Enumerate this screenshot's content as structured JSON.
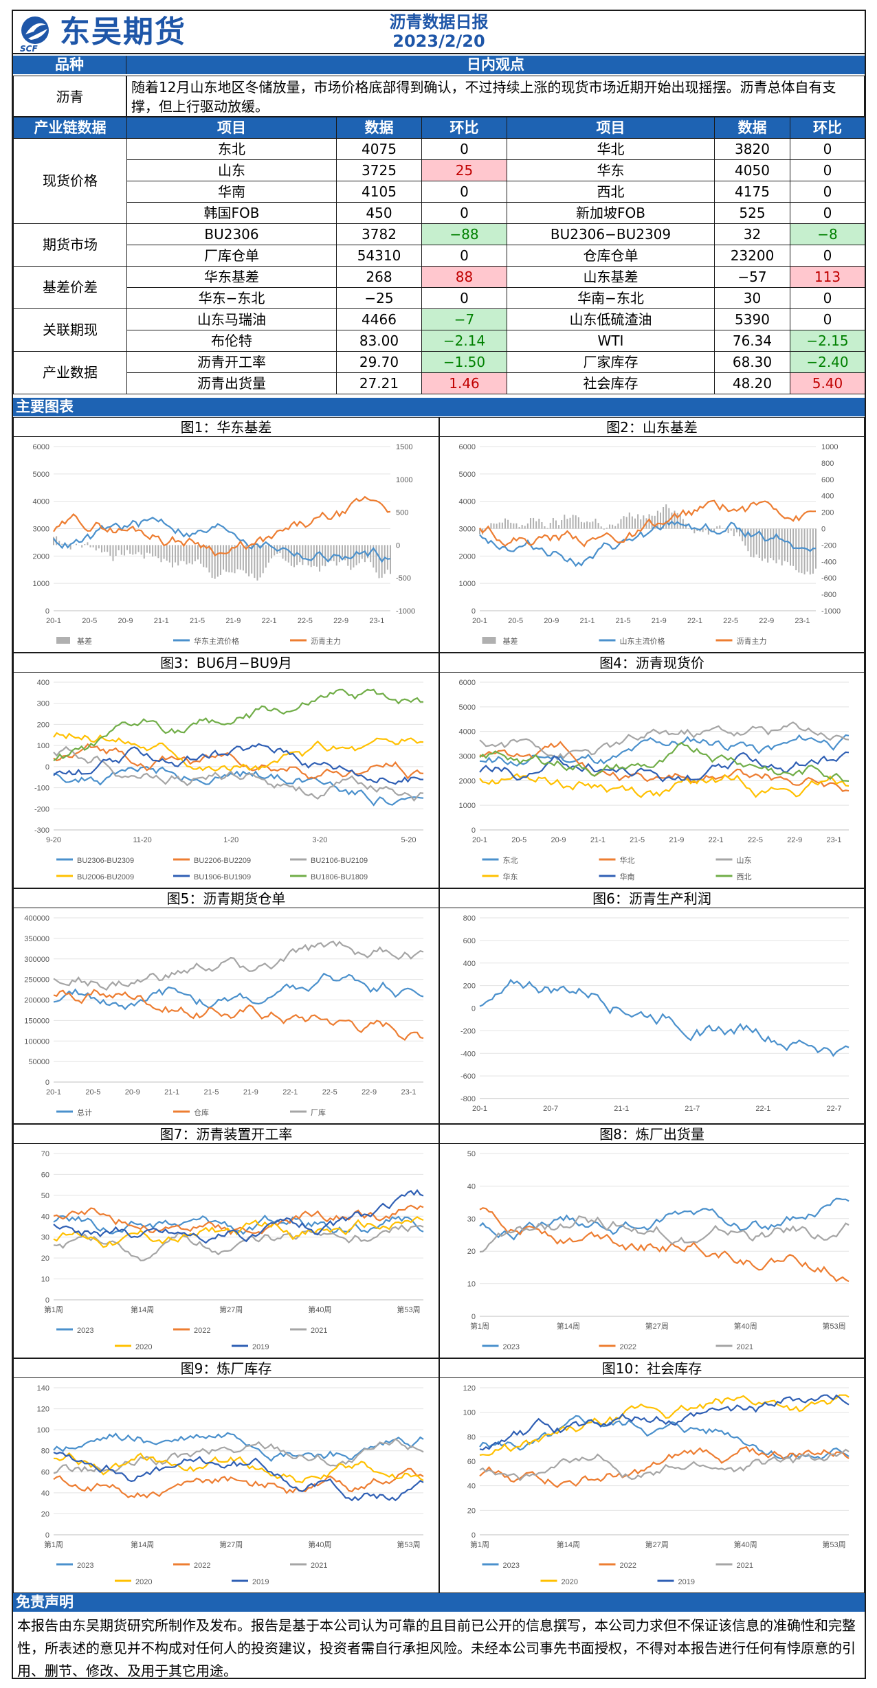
{
  "header": {
    "company": "东吴期货",
    "company_abbr": "SCF",
    "title": "沥青数据日报",
    "date": "2023/2/20"
  },
  "view": {
    "col1": "品种",
    "col2": "日内观点",
    "product": "沥青",
    "text": "随着12月山东地区冬储放量，市场价格底部得到确认，不过持续上涨的现货市场近期开始出现摇摆。沥青总体自有支撑，但上行驱动放缓。"
  },
  "chain": {
    "headers": [
      "产业链数据",
      "项目",
      "数据",
      "环比",
      "项目",
      "数据",
      "环比"
    ],
    "groups": [
      {
        "name": "现货价格",
        "rows": [
          {
            "i1": "东北",
            "v1": "4075",
            "c1": "0",
            "s1": "",
            "i2": "华北",
            "v2": "3820",
            "c2": "0",
            "s2": ""
          },
          {
            "i1": "山东",
            "v1": "3725",
            "c1": "25",
            "s1": "red",
            "i2": "华东",
            "v2": "4050",
            "c2": "0",
            "s2": ""
          },
          {
            "i1": "华南",
            "v1": "4105",
            "c1": "0",
            "s1": "",
            "i2": "西北",
            "v2": "4175",
            "c2": "0",
            "s2": ""
          },
          {
            "i1": "韩国FOB",
            "v1": "450",
            "c1": "0",
            "s1": "",
            "i2": "新加坡FOB",
            "v2": "525",
            "c2": "0",
            "s2": ""
          }
        ]
      },
      {
        "name": "期货市场",
        "rows": [
          {
            "i1": "BU2306",
            "v1": "3782",
            "c1": "−88",
            "s1": "green",
            "i2": "BU2306−BU2309",
            "v2": "32",
            "c2": "−8",
            "s2": "green"
          },
          {
            "i1": "厂库仓单",
            "v1": "54310",
            "c1": "0",
            "s1": "",
            "i2": "仓库仓单",
            "v2": "23200",
            "c2": "0",
            "s2": ""
          }
        ]
      },
      {
        "name": "基差价差",
        "rows": [
          {
            "i1": "华东基差",
            "v1": "268",
            "c1": "88",
            "s1": "red",
            "i2": "山东基差",
            "v2": "−57",
            "c2": "113",
            "s2": "red"
          },
          {
            "i1": "华东−东北",
            "v1": "−25",
            "c1": "0",
            "s1": "",
            "i2": "华南−东北",
            "v2": "30",
            "c2": "0",
            "s2": ""
          }
        ]
      },
      {
        "name": "关联期现",
        "rows": [
          {
            "i1": "山东马瑞油",
            "v1": "4466",
            "c1": "−7",
            "s1": "green",
            "i2": "山东低硫渣油",
            "v2": "5390",
            "c2": "0",
            "s2": ""
          },
          {
            "i1": "布伦特",
            "v1": "83.00",
            "c1": "−2.14",
            "s1": "green",
            "i2": "WTI",
            "v2": "76.34",
            "c2": "−2.15",
            "s2": "green"
          }
        ]
      },
      {
        "name": "产业数据",
        "rows": [
          {
            "i1": "沥青开工率",
            "v1": "29.70",
            "c1": "−1.50",
            "s1": "green",
            "i2": "厂家库存",
            "v2": "68.30",
            "c2": "−2.40",
            "s2": "green"
          },
          {
            "i1": "沥青出货量",
            "v1": "27.21",
            "c1": "1.46",
            "s1": "red",
            "i2": "社会库存",
            "v2": "48.20",
            "c2": "5.40",
            "s2": "red"
          }
        ]
      }
    ]
  },
  "section_charts": "主要图表",
  "charts": [
    {
      "title": "图1：华东基差",
      "x_ticks": [
        "20-1",
        "20-5",
        "20-9",
        "21-1",
        "21-5",
        "21-9",
        "22-1",
        "22-5",
        "22-9",
        "23-1"
      ],
      "y_left": [
        "0",
        "1000",
        "2000",
        "3000",
        "4000",
        "5000",
        "6000"
      ],
      "y_right": [
        "-1000",
        "-500",
        "0",
        "500",
        "1000",
        "1500"
      ],
      "legend": [
        "基差",
        "华东主流价格",
        "沥青主力"
      ],
      "colors": [
        "#b0b0b0",
        "#4a90cc",
        "#ed7d31"
      ]
    },
    {
      "title": "图2：山东基差",
      "x_ticks": [
        "20-1",
        "20-5",
        "20-9",
        "21-1",
        "21-5",
        "21-9",
        "22-1",
        "22-5",
        "22-9",
        "23-1"
      ],
      "y_left": [
        "0",
        "1000",
        "2000",
        "3000",
        "4000",
        "5000",
        "6000"
      ],
      "y_right": [
        "-1000",
        "-800",
        "-600",
        "-400",
        "-200",
        "0",
        "200",
        "400",
        "600",
        "800",
        "1000"
      ],
      "legend": [
        "基差",
        "山东主流价格",
        "沥青主力"
      ],
      "colors": [
        "#b0b0b0",
        "#4a90cc",
        "#ed7d31"
      ]
    },
    {
      "title": "图3：BU6月−BU9月",
      "x_ticks": [
        "9-20",
        "11-20",
        "1-20",
        "3-20",
        "5-20"
      ],
      "y_left": [
        "-300",
        "-200",
        "-100",
        "0",
        "100",
        "200",
        "300",
        "400"
      ],
      "legend": [
        "BU2306-BU2309",
        "BU2206-BU2209",
        "BU2106-BU2109",
        "BU2006-BU2009",
        "BU1906-BU1909",
        "BU1806-BU1809"
      ],
      "colors": [
        "#4a90cc",
        "#ed7d31",
        "#a5a5a5",
        "#ffc000",
        "#2f5fb4",
        "#70ad47"
      ]
    },
    {
      "title": "图4：沥青现货价",
      "x_ticks": [
        "20-1",
        "20-5",
        "20-9",
        "21-1",
        "21-5",
        "21-9",
        "22-1",
        "22-5",
        "22-9",
        "23-1"
      ],
      "y_left": [
        "0",
        "1000",
        "2000",
        "3000",
        "4000",
        "5000",
        "6000"
      ],
      "legend": [
        "东北",
        "华北",
        "山东",
        "华东",
        "华南",
        "西北"
      ],
      "colors": [
        "#4a90cc",
        "#ed7d31",
        "#a5a5a5",
        "#ffc000",
        "#2f5fb4",
        "#70ad47"
      ]
    },
    {
      "title": "图5：沥青期货仓单",
      "x_ticks": [
        "20-1",
        "20-5",
        "20-9",
        "21-1",
        "21-5",
        "21-9",
        "22-1",
        "22-5",
        "22-9",
        "23-1"
      ],
      "y_left": [
        "0",
        "50000",
        "100000",
        "150000",
        "200000",
        "250000",
        "300000",
        "350000",
        "400000"
      ],
      "legend": [
        "总计",
        "仓库",
        "厂库"
      ],
      "colors": [
        "#4a90cc",
        "#ed7d31",
        "#a5a5a5"
      ]
    },
    {
      "title": "图6：沥青生产利润",
      "x_ticks": [
        "20-1",
        "20-7",
        "21-1",
        "21-7",
        "22-1",
        "22-7"
      ],
      "y_left": [
        "-800",
        "-600",
        "-400",
        "-200",
        "0",
        "200",
        "400",
        "600",
        "800"
      ],
      "legend": [],
      "colors": [
        "#4a90cc"
      ]
    },
    {
      "title": "图7：沥青装置开工率",
      "x_ticks": [
        "第1周",
        "第14周",
        "第27周",
        "第40周",
        "第53周"
      ],
      "y_left": [
        "0",
        "10",
        "20",
        "30",
        "40",
        "50",
        "60",
        "70"
      ],
      "legend": [
        "2023",
        "2022",
        "2021",
        "2020",
        "2019"
      ],
      "colors": [
        "#4a90cc",
        "#ed7d31",
        "#a5a5a5",
        "#ffc000",
        "#2f5fb4"
      ]
    },
    {
      "title": "图8：炼厂出货量",
      "x_ticks": [
        "第1周",
        "第14周",
        "第27周",
        "第40周",
        "第53周"
      ],
      "y_left": [
        "0",
        "10",
        "20",
        "30",
        "40",
        "50"
      ],
      "legend": [
        "2023",
        "2022",
        "2021"
      ],
      "colors": [
        "#4a90cc",
        "#ed7d31",
        "#a5a5a5"
      ]
    },
    {
      "title": "图9：炼厂库存",
      "x_ticks": [
        "第1周",
        "第14周",
        "第27周",
        "第40周",
        "第53周"
      ],
      "y_left": [
        "0",
        "20",
        "40",
        "60",
        "80",
        "100",
        "120",
        "140"
      ],
      "legend": [
        "2023",
        "2022",
        "2021",
        "2020",
        "2019"
      ],
      "colors": [
        "#4a90cc",
        "#ed7d31",
        "#a5a5a5",
        "#ffc000",
        "#2f5fb4"
      ]
    },
    {
      "title": "图10：社会库存",
      "x_ticks": [
        "第1周",
        "第14周",
        "第27周",
        "第40周",
        "第53周"
      ],
      "y_left": [
        "0",
        "20",
        "40",
        "60",
        "80",
        "100",
        "120"
      ],
      "legend": [
        "2023",
        "2022",
        "2021",
        "2020",
        "2019"
      ],
      "colors": [
        "#4a90cc",
        "#ed7d31",
        "#a5a5a5",
        "#ffc000",
        "#2f5fb4"
      ]
    }
  ],
  "disclaimer": {
    "title": "免责声明",
    "text": "本报告由东吴期货研究所制作及发布。报告是基于本公司认为可靠的且目前已公开的信息撰写，本公司力求但不保证该信息的准确性和完整性，所表述的意见并不构成对任何人的投资建议，投资者需自行承担风险。未经本公司事先书面授权，不得对本报告进行任何有悖原意的引用、删节、修改、及用于其它用途。"
  }
}
